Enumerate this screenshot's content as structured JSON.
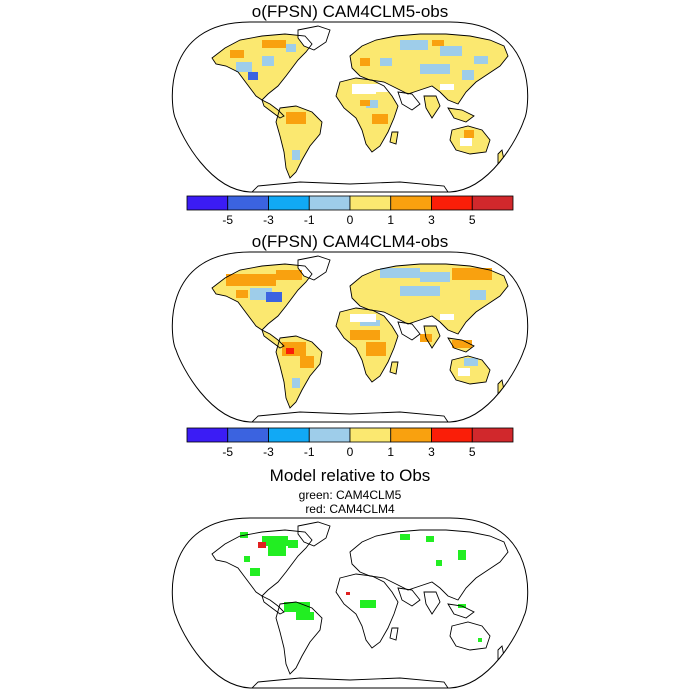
{
  "panels": [
    {
      "title": "o(FPSN) CAM4CLM5-obs"
    },
    {
      "title": "o(FPSN) CAM4CLM4-obs"
    },
    {
      "title": "Model relative to Obs",
      "legend_lines": [
        "green: CAM4CLM5",
        "red: CAM4CLM4"
      ]
    }
  ],
  "colorbar": {
    "colors": [
      "#3b1cf5",
      "#3b63e0",
      "#11a9f5",
      "#9ecdea",
      "#fbe870",
      "#f9a10f",
      "#fa1e08",
      "#d1282c"
    ],
    "tick_labels": [
      "-5",
      "-3",
      "-1",
      "0",
      "1",
      "3",
      "5"
    ]
  },
  "map_colors": {
    "land_default": "#fbe870",
    "land_positive_large": "#f9a10f",
    "land_negative": "#9ecdea",
    "land_negative_large": "#3b63e0",
    "no_data": "#ffffff",
    "better_clm5": "#22ee22",
    "better_clm4": "#e02020"
  }
}
